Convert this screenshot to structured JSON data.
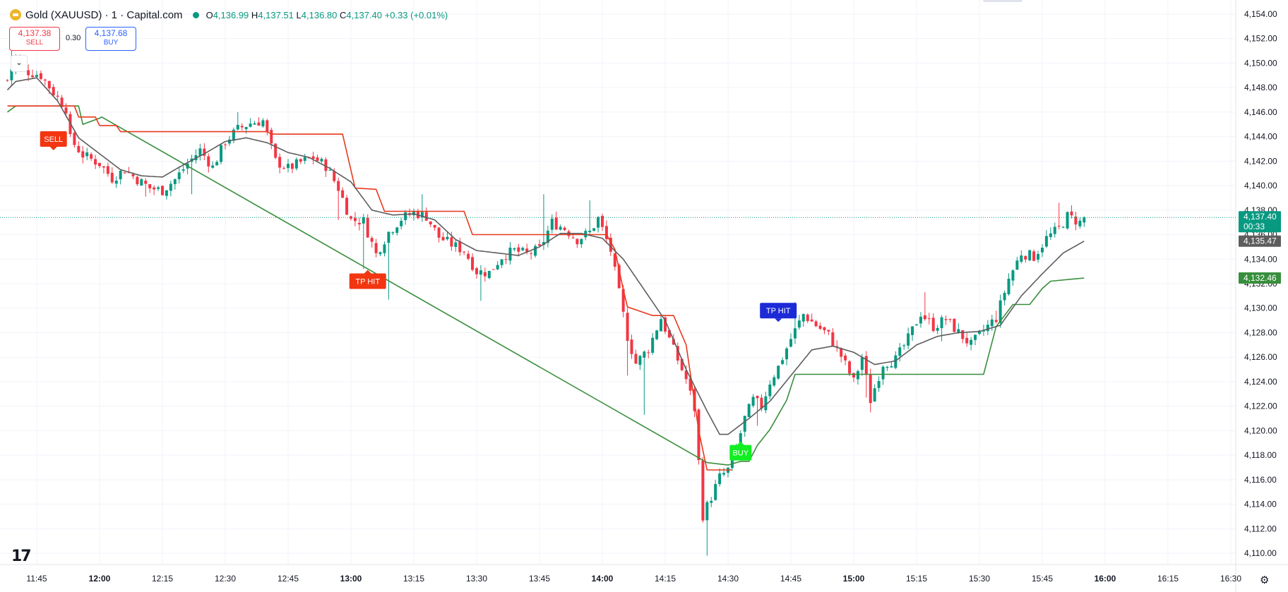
{
  "header": {
    "symbol": "Gold (XAUUSD) · 1 · Capital.com",
    "o_label": "O",
    "o": "4,136.99",
    "h_label": "H",
    "h": "4,137.51",
    "l_label": "L",
    "l": "4,136.80",
    "c_label": "C",
    "c": "4,137.40",
    "change": "+0.33 (+0.01%)"
  },
  "trade": {
    "sell_price": "4,137.38",
    "sell_label": "SELL",
    "spread": "0.30",
    "buy_price": "4,137.68",
    "buy_label": "BUY"
  },
  "colors": {
    "up": "#089981",
    "down": "#f23645",
    "ema": "#5d5d5d",
    "red_line": "#e8391d",
    "green_line": "#388e3c",
    "grid": "#f0f3fa"
  },
  "chart_data": {
    "type": "candlestick",
    "title": "Gold (XAUUSD) · 1 · Capital.com",
    "y_ticks": [
      "4,154.00",
      "4,152.00",
      "4,150.00",
      "4,148.00",
      "4,146.00",
      "4,144.00",
      "4,142.00",
      "4,140.00",
      "4,138.00",
      "4,136.00",
      "4,134.00",
      "4,132.00",
      "4,130.00",
      "4,128.00",
      "4,126.00",
      "4,124.00",
      "4,122.00",
      "4,120.00",
      "4,118.00",
      "4,116.00",
      "4,114.00",
      "4,112.00",
      "4,110.00"
    ],
    "y_range": [
      4109.2,
      4154.8
    ],
    "x_ticks": [
      {
        "label": "11:45",
        "t": 0,
        "bold": false
      },
      {
        "label": "12:00",
        "t": 15,
        "bold": true
      },
      {
        "label": "12:15",
        "t": 30,
        "bold": false
      },
      {
        "label": "12:30",
        "t": 45,
        "bold": false
      },
      {
        "label": "12:45",
        "t": 60,
        "bold": false
      },
      {
        "label": "13:00",
        "t": 75,
        "bold": true
      },
      {
        "label": "13:15",
        "t": 90,
        "bold": false
      },
      {
        "label": "13:30",
        "t": 105,
        "bold": false
      },
      {
        "label": "13:45",
        "t": 120,
        "bold": false
      },
      {
        "label": "14:00",
        "t": 135,
        "bold": true
      },
      {
        "label": "14:15",
        "t": 150,
        "bold": false
      },
      {
        "label": "14:30",
        "t": 165,
        "bold": false
      },
      {
        "label": "14:45",
        "t": 180,
        "bold": false
      },
      {
        "label": "15:00",
        "t": 195,
        "bold": true
      },
      {
        "label": "15:15",
        "t": 210,
        "bold": false
      },
      {
        "label": "15:30",
        "t": 225,
        "bold": false
      },
      {
        "label": "15:45",
        "t": 240,
        "bold": false
      },
      {
        "label": "16:00",
        "t": 255,
        "bold": true
      },
      {
        "label": "16:15",
        "t": 270,
        "bold": false
      },
      {
        "label": "16:30",
        "t": 285,
        "bold": false
      }
    ],
    "close_keypoints": [
      [
        -7,
        4148.6
      ],
      [
        -5,
        4150.5
      ],
      [
        -3,
        4149.4
      ],
      [
        1,
        4149.0
      ],
      [
        4,
        4147.6
      ],
      [
        7,
        4146.3
      ],
      [
        8,
        4143.8
      ],
      [
        11,
        4142.5
      ],
      [
        15,
        4141.8
      ],
      [
        18,
        4140.6
      ],
      [
        21,
        4141.3
      ],
      [
        24,
        4140.5
      ],
      [
        27,
        4139.8
      ],
      [
        30,
        4139.6
      ],
      [
        33,
        4140.5
      ],
      [
        36,
        4141.8
      ],
      [
        39,
        4142.9
      ],
      [
        42,
        4141.5
      ],
      [
        45,
        4143.6
      ],
      [
        48,
        4144.6
      ],
      [
        51,
        4145.1
      ],
      [
        54,
        4145.3
      ],
      [
        57,
        4142.0
      ],
      [
        60,
        4141.4
      ],
      [
        63,
        4141.9
      ],
      [
        66,
        4142.3
      ],
      [
        69,
        4141.6
      ],
      [
        72,
        4139.8
      ],
      [
        75,
        4137.2
      ],
      [
        78,
        4137.1
      ],
      [
        81,
        4134.4
      ],
      [
        84,
        4136.2
      ],
      [
        87,
        4137.3
      ],
      [
        90,
        4137.8
      ],
      [
        93,
        4137.5
      ],
      [
        96,
        4135.8
      ],
      [
        99,
        4135.2
      ],
      [
        102,
        4134.7
      ],
      [
        105,
        4133.0
      ],
      [
        108,
        4132.9
      ],
      [
        111,
        4134.2
      ],
      [
        114,
        4134.7
      ],
      [
        117,
        4134.4
      ],
      [
        120,
        4134.8
      ],
      [
        123,
        4137.0
      ],
      [
        126,
        4136.5
      ],
      [
        129,
        4135.6
      ],
      [
        132,
        4136.2
      ],
      [
        134,
        4137.3
      ],
      [
        137,
        4134.7
      ],
      [
        139,
        4131.2
      ],
      [
        141,
        4127.7
      ],
      [
        143,
        4125.5
      ],
      [
        146,
        4126.7
      ],
      [
        149,
        4129.2
      ],
      [
        152,
        4126.6
      ],
      [
        155,
        4124.2
      ],
      [
        157,
        4121.8
      ],
      [
        159,
        4113.1
      ],
      [
        161,
        4114.6
      ],
      [
        163,
        4116.2
      ],
      [
        165,
        4116.8
      ],
      [
        167,
        4118.6
      ],
      [
        169,
        4121.0
      ],
      [
        171,
        4122.5
      ],
      [
        173,
        4122.0
      ],
      [
        175,
        4124.0
      ],
      [
        177,
        4125.2
      ],
      [
        180,
        4127.5
      ],
      [
        183,
        4129.5
      ],
      [
        186,
        4128.6
      ],
      [
        189,
        4127.8
      ],
      [
        192,
        4126.1
      ],
      [
        195,
        4124.0
      ],
      [
        197,
        4126.0
      ],
      [
        199,
        4122.5
      ],
      [
        202,
        4125.5
      ],
      [
        205,
        4125.8
      ],
      [
        208,
        4127.5
      ],
      [
        211,
        4129.6
      ],
      [
        214,
        4128.5
      ],
      [
        217,
        4129.1
      ],
      [
        220,
        4128.0
      ],
      [
        223,
        4127.0
      ],
      [
        226,
        4128.2
      ],
      [
        229,
        4129.2
      ],
      [
        232,
        4132.4
      ],
      [
        235,
        4134.5
      ],
      [
        238,
        4134.2
      ],
      [
        241,
        4135.7
      ],
      [
        244,
        4136.5
      ],
      [
        246,
        4137.5
      ],
      [
        249,
        4136.99
      ],
      [
        250,
        4137.4
      ]
    ],
    "ema_keypoints": [
      [
        -7,
        4147.8
      ],
      [
        -5,
        4148.5
      ],
      [
        0,
        4148.8
      ],
      [
        5,
        4146.9
      ],
      [
        10,
        4143.9
      ],
      [
        15,
        4142.6
      ],
      [
        20,
        4141.3
      ],
      [
        25,
        4140.8
      ],
      [
        30,
        4140.7
      ],
      [
        35,
        4141.7
      ],
      [
        40,
        4142.6
      ],
      [
        45,
        4143.6
      ],
      [
        50,
        4143.9
      ],
      [
        55,
        4143.5
      ],
      [
        60,
        4142.7
      ],
      [
        65,
        4142.3
      ],
      [
        70,
        4141.4
      ],
      [
        75,
        4140.3
      ],
      [
        80,
        4138.0
      ],
      [
        85,
        4137.6
      ],
      [
        90,
        4137.7
      ],
      [
        95,
        4137.2
      ],
      [
        100,
        4135.6
      ],
      [
        105,
        4134.7
      ],
      [
        110,
        4134.5
      ],
      [
        115,
        4134.3
      ],
      [
        120,
        4135.0
      ],
      [
        125,
        4136.1
      ],
      [
        130,
        4136.1
      ],
      [
        135,
        4135.7
      ],
      [
        140,
        4134.0
      ],
      [
        145,
        4131.5
      ],
      [
        150,
        4129.0
      ],
      [
        155,
        4125.0
      ],
      [
        160,
        4121.6
      ],
      [
        163,
        4119.7
      ],
      [
        165,
        4119.7
      ],
      [
        170,
        4121.0
      ],
      [
        175,
        4122.4
      ],
      [
        180,
        4124.5
      ],
      [
        185,
        4126.6
      ],
      [
        190,
        4126.9
      ],
      [
        195,
        4126.4
      ],
      [
        200,
        4125.4
      ],
      [
        205,
        4125.7
      ],
      [
        210,
        4127.0
      ],
      [
        215,
        4127.7
      ],
      [
        220,
        4128.0
      ],
      [
        225,
        4128.1
      ],
      [
        230,
        4128.6
      ],
      [
        235,
        4131.0
      ],
      [
        240,
        4132.8
      ],
      [
        245,
        4134.5
      ],
      [
        250,
        4135.47
      ]
    ],
    "red_line": [
      [
        -7,
        4146.5
      ],
      [
        9,
        4146.5
      ],
      [
        10,
        4145.6
      ],
      [
        14,
        4145.6
      ],
      [
        15,
        4144.9
      ],
      [
        19,
        4144.9
      ],
      [
        20,
        4144.4
      ],
      [
        55,
        4144.4
      ],
      [
        56,
        4144.2
      ],
      [
        73,
        4144.2
      ],
      [
        76,
        4139.8
      ],
      [
        81,
        4139.7
      ],
      [
        83,
        4137.9
      ],
      [
        94,
        4137.9
      ],
      [
        96,
        4137.9
      ],
      [
        102,
        4137.9
      ],
      [
        104,
        4136.0
      ],
      [
        136,
        4136.0
      ],
      [
        138,
        4134.8
      ],
      [
        140,
        4131.5
      ],
      [
        141,
        4130.1
      ],
      [
        147,
        4129.4
      ],
      [
        152,
        4129.4
      ],
      [
        155,
        4127.0
      ],
      [
        158,
        4120.0
      ],
      [
        160,
        4116.8
      ],
      [
        166,
        4116.8
      ]
    ],
    "green_line": [
      [
        -7,
        4146.0
      ],
      [
        -5,
        4146.5
      ],
      [
        10,
        4146.5
      ],
      [
        11,
        4145.0
      ],
      [
        15,
        4145.5
      ],
      [
        15.5,
        4145.6
      ],
      [
        160,
        4117.4
      ],
      [
        165,
        4117.2
      ],
      [
        168,
        4117.5
      ],
      [
        170,
        4117.5
      ],
      [
        172,
        4118.8
      ],
      [
        175,
        4120.1
      ],
      [
        179,
        4122.5
      ],
      [
        181,
        4124.6
      ],
      [
        188,
        4124.6
      ],
      [
        203,
        4124.6
      ],
      [
        206,
        4124.6
      ],
      [
        215,
        4124.6
      ],
      [
        224,
        4124.6
      ],
      [
        226,
        4124.6
      ],
      [
        229,
        4128.5
      ],
      [
        233,
        4130.3
      ],
      [
        237,
        4130.3
      ],
      [
        240,
        4131.6
      ],
      [
        242,
        4132.2
      ],
      [
        250,
        4132.46
      ]
    ],
    "low_wicks": [
      [
        2,
        4148.9
      ],
      [
        26,
        4139.1
      ],
      [
        37,
        4139.3
      ],
      [
        72,
        4137.2
      ],
      [
        78,
        4133.2
      ],
      [
        84,
        4130.7
      ],
      [
        106,
        4130.6
      ],
      [
        141,
        4124.5
      ],
      [
        145,
        4121.3
      ],
      [
        160,
        4109.8
      ],
      [
        172,
        4120.4
      ],
      [
        198,
        4122.7
      ],
      [
        199,
        4121.5
      ],
      [
        216,
        4127.3
      ]
    ],
    "high_wicks": [
      [
        -6,
        4151.0
      ],
      [
        48,
        4146.0
      ],
      [
        92,
        4139.3
      ],
      [
        121,
        4139.3
      ],
      [
        132,
        4138.8
      ],
      [
        181,
        4130.5
      ],
      [
        212,
        4131.3
      ],
      [
        229,
        4129.8
      ],
      [
        244,
        4138.6
      ],
      [
        247,
        4138.4
      ]
    ],
    "labels": [
      {
        "text": "SELL",
        "t": 4,
        "price": 4143.8,
        "color": "#f23611",
        "dir": "down"
      },
      {
        "text": "TP HIT",
        "t": 79,
        "price": 4132.2,
        "color": "#f23611",
        "dir": "up"
      },
      {
        "text": "TP HIT",
        "t": 177,
        "price": 4129.8,
        "color": "#1d2bd7",
        "dir": "down"
      },
      {
        "text": "BUY",
        "t": 168,
        "price": 4118.2,
        "color": "#11ee22",
        "dir": "up"
      }
    ],
    "price_tags": [
      {
        "value": "4,137.40",
        "extra": "00:33",
        "price": 4137.4,
        "color": "#089981"
      },
      {
        "value": "4,135.47",
        "extra": "",
        "price": 4135.47,
        "color": "#5d5d5d"
      },
      {
        "value": "4,132.46",
        "extra": "",
        "price": 4132.46,
        "color": "#388e3c"
      }
    ],
    "last_price": 4137.4
  }
}
